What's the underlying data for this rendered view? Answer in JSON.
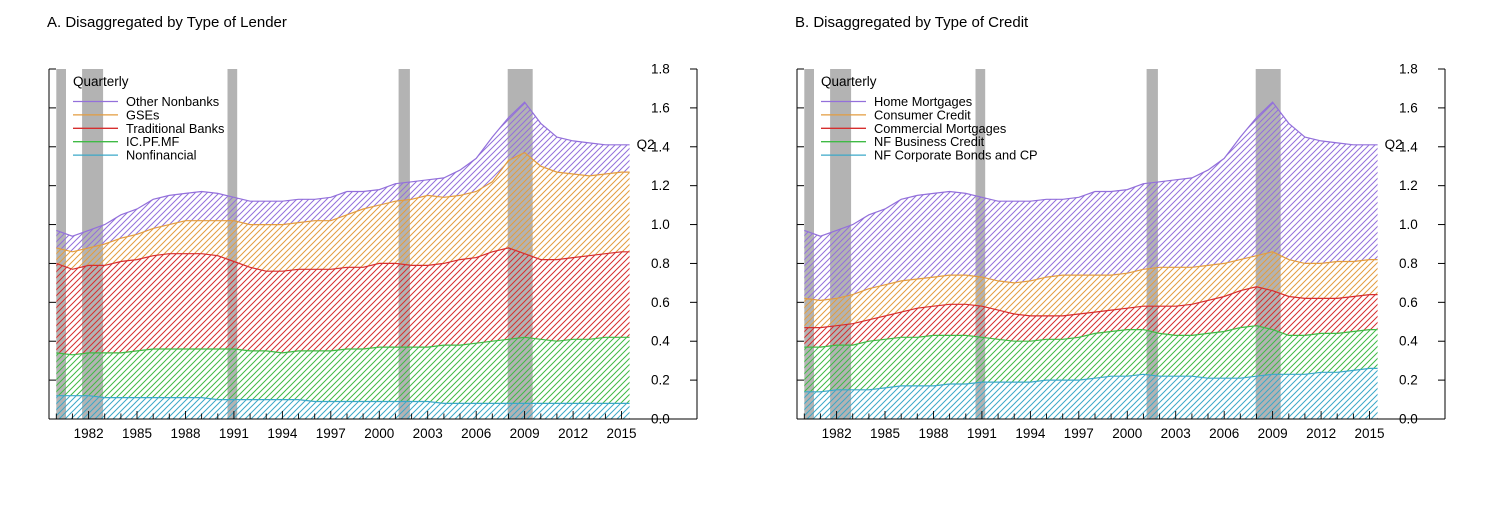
{
  "figure": {
    "background": "#ffffff",
    "panels": [
      {
        "title": "A. Disaggregated by Type of Lender",
        "frequency_label": "Quarterly",
        "end_label": "Q2"
      },
      {
        "title": "B. Disaggregated by Type of Credit",
        "frequency_label": "Quarterly",
        "end_label": "Q2"
      }
    ]
  },
  "chart_data": [
    {
      "type": "area",
      "stacked": true,
      "title": "A. Disaggregated by Type of Lender",
      "frequency_label": "Quarterly",
      "end_label": "Q2",
      "xlabel": "",
      "ylabel": "",
      "ylim": [
        0,
        1.8
      ],
      "ytick_step": 0.2,
      "ytick_labels": [
        "0.0",
        "0.2",
        "0.4",
        "0.6",
        "0.8",
        "1.0",
        "1.2",
        "1.4",
        "1.6",
        "1.8"
      ],
      "xtick_labels": [
        "1982",
        "1985",
        "1988",
        "1991",
        "1994",
        "1997",
        "2000",
        "2003",
        "2006",
        "2009",
        "2012",
        "2015"
      ],
      "legend_position": "top-left",
      "hatch": "diagonal",
      "band_color": "#b3b3b3",
      "recession_bands": [
        [
          1980.0,
          1980.6
        ],
        [
          1981.6,
          1982.9
        ],
        [
          1990.6,
          1991.2
        ],
        [
          2001.2,
          2001.9
        ],
        [
          2007.95,
          2009.5
        ]
      ],
      "series_order_note": "series listed top-to-bottom of stack",
      "x": [
        1980,
        1981,
        1982,
        1983,
        1984,
        1985,
        1986,
        1987,
        1988,
        1989,
        1990,
        1991,
        1992,
        1993,
        1994,
        1995,
        1996,
        1997,
        1998,
        1999,
        2000,
        2001,
        2002,
        2003,
        2004,
        2005,
        2006,
        2007,
        2008,
        2009,
        2010,
        2011,
        2012,
        2013,
        2014,
        2015,
        2015.5
      ],
      "series": [
        {
          "name": "Other Nonbanks",
          "color": "#9370DB",
          "values": [
            0.09,
            0.08,
            0.09,
            0.1,
            0.12,
            0.13,
            0.15,
            0.15,
            0.14,
            0.15,
            0.14,
            0.12,
            0.12,
            0.12,
            0.12,
            0.12,
            0.11,
            0.12,
            0.12,
            0.09,
            0.08,
            0.09,
            0.09,
            0.08,
            0.1,
            0.13,
            0.17,
            0.23,
            0.22,
            0.26,
            0.22,
            0.18,
            0.17,
            0.17,
            0.15,
            0.14,
            0.14
          ]
        },
        {
          "name": "GSEs",
          "color": "#E39C3F",
          "values": [
            0.08,
            0.09,
            0.09,
            0.11,
            0.12,
            0.13,
            0.14,
            0.15,
            0.17,
            0.17,
            0.18,
            0.21,
            0.22,
            0.24,
            0.24,
            0.24,
            0.25,
            0.25,
            0.27,
            0.3,
            0.3,
            0.32,
            0.34,
            0.36,
            0.34,
            0.33,
            0.34,
            0.36,
            0.45,
            0.52,
            0.48,
            0.45,
            0.43,
            0.41,
            0.41,
            0.41,
            0.41
          ]
        },
        {
          "name": "Traditional Banks",
          "color": "#D62E2E",
          "values": [
            0.46,
            0.44,
            0.45,
            0.45,
            0.47,
            0.47,
            0.48,
            0.49,
            0.49,
            0.49,
            0.48,
            0.45,
            0.43,
            0.41,
            0.42,
            0.42,
            0.42,
            0.42,
            0.42,
            0.42,
            0.43,
            0.43,
            0.42,
            0.42,
            0.42,
            0.44,
            0.44,
            0.46,
            0.47,
            0.43,
            0.41,
            0.42,
            0.42,
            0.43,
            0.43,
            0.44,
            0.44
          ]
        },
        {
          "name": "IC.PF.MF",
          "color": "#3FBA45",
          "values": [
            0.22,
            0.21,
            0.22,
            0.23,
            0.23,
            0.24,
            0.25,
            0.25,
            0.25,
            0.25,
            0.26,
            0.26,
            0.25,
            0.25,
            0.24,
            0.25,
            0.26,
            0.26,
            0.27,
            0.27,
            0.28,
            0.28,
            0.28,
            0.28,
            0.3,
            0.3,
            0.31,
            0.32,
            0.33,
            0.34,
            0.33,
            0.32,
            0.33,
            0.33,
            0.34,
            0.34,
            0.34
          ]
        },
        {
          "name": "Nonfinancial",
          "color": "#3BA8C8",
          "values": [
            0.12,
            0.12,
            0.12,
            0.11,
            0.11,
            0.11,
            0.11,
            0.11,
            0.11,
            0.11,
            0.1,
            0.1,
            0.1,
            0.1,
            0.1,
            0.1,
            0.09,
            0.09,
            0.09,
            0.09,
            0.09,
            0.09,
            0.09,
            0.09,
            0.08,
            0.08,
            0.08,
            0.08,
            0.08,
            0.08,
            0.08,
            0.08,
            0.08,
            0.08,
            0.08,
            0.08,
            0.08
          ]
        }
      ]
    },
    {
      "type": "area",
      "stacked": true,
      "title": "B. Disaggregated by Type of Credit",
      "frequency_label": "Quarterly",
      "end_label": "Q2",
      "xlabel": "",
      "ylabel": "",
      "ylim": [
        0,
        1.8
      ],
      "ytick_step": 0.2,
      "ytick_labels": [
        "0.0",
        "0.2",
        "0.4",
        "0.6",
        "0.8",
        "1.0",
        "1.2",
        "1.4",
        "1.6",
        "1.8"
      ],
      "xtick_labels": [
        "1982",
        "1985",
        "1988",
        "1991",
        "1994",
        "1997",
        "2000",
        "2003",
        "2006",
        "2009",
        "2012",
        "2015"
      ],
      "legend_position": "top-left",
      "hatch": "diagonal",
      "band_color": "#b3b3b3",
      "recession_bands": [
        [
          1980.0,
          1980.6
        ],
        [
          1981.6,
          1982.9
        ],
        [
          1990.6,
          1991.2
        ],
        [
          2001.2,
          2001.9
        ],
        [
          2007.95,
          2009.5
        ]
      ],
      "series_order_note": "series listed top-to-bottom of stack",
      "x": [
        1980,
        1981,
        1982,
        1983,
        1984,
        1985,
        1986,
        1987,
        1988,
        1989,
        1990,
        1991,
        1992,
        1993,
        1994,
        1995,
        1996,
        1997,
        1998,
        1999,
        2000,
        2001,
        2002,
        2003,
        2004,
        2005,
        2006,
        2007,
        2008,
        2009,
        2010,
        2011,
        2012,
        2013,
        2014,
        2015,
        2015.5
      ],
      "series": [
        {
          "name": "Home Mortgages",
          "color": "#9370DB",
          "values": [
            0.35,
            0.33,
            0.35,
            0.36,
            0.38,
            0.39,
            0.42,
            0.43,
            0.43,
            0.43,
            0.42,
            0.41,
            0.41,
            0.42,
            0.41,
            0.4,
            0.39,
            0.4,
            0.43,
            0.43,
            0.43,
            0.44,
            0.44,
            0.45,
            0.46,
            0.49,
            0.54,
            0.63,
            0.71,
            0.77,
            0.7,
            0.65,
            0.63,
            0.61,
            0.6,
            0.59,
            0.59
          ]
        },
        {
          "name": "Consumer Credit",
          "color": "#E39C3F",
          "values": [
            0.15,
            0.14,
            0.14,
            0.15,
            0.16,
            0.16,
            0.16,
            0.15,
            0.15,
            0.15,
            0.15,
            0.15,
            0.15,
            0.16,
            0.18,
            0.2,
            0.21,
            0.2,
            0.19,
            0.18,
            0.18,
            0.19,
            0.2,
            0.2,
            0.19,
            0.18,
            0.17,
            0.16,
            0.16,
            0.2,
            0.19,
            0.18,
            0.18,
            0.19,
            0.18,
            0.18,
            0.18
          ]
        },
        {
          "name": "Commercial Mortgages",
          "color": "#D62E2E",
          "values": [
            0.1,
            0.1,
            0.1,
            0.11,
            0.11,
            0.12,
            0.13,
            0.15,
            0.15,
            0.16,
            0.16,
            0.16,
            0.15,
            0.14,
            0.13,
            0.12,
            0.12,
            0.12,
            0.11,
            0.11,
            0.11,
            0.12,
            0.14,
            0.15,
            0.16,
            0.17,
            0.18,
            0.19,
            0.2,
            0.2,
            0.2,
            0.19,
            0.18,
            0.18,
            0.18,
            0.18,
            0.18
          ]
        },
        {
          "name": "NF Business Credit",
          "color": "#3FBA45",
          "values": [
            0.23,
            0.23,
            0.23,
            0.23,
            0.25,
            0.25,
            0.25,
            0.25,
            0.26,
            0.25,
            0.25,
            0.23,
            0.22,
            0.21,
            0.21,
            0.21,
            0.21,
            0.22,
            0.23,
            0.23,
            0.24,
            0.23,
            0.22,
            0.21,
            0.21,
            0.23,
            0.24,
            0.26,
            0.26,
            0.23,
            0.2,
            0.2,
            0.2,
            0.2,
            0.2,
            0.2,
            0.2
          ]
        },
        {
          "name": "NF Corporate Bonds and CP",
          "color": "#3BA8C8",
          "values": [
            0.14,
            0.14,
            0.15,
            0.15,
            0.15,
            0.16,
            0.17,
            0.17,
            0.17,
            0.18,
            0.18,
            0.19,
            0.19,
            0.19,
            0.19,
            0.2,
            0.2,
            0.2,
            0.21,
            0.22,
            0.22,
            0.23,
            0.22,
            0.22,
            0.22,
            0.21,
            0.21,
            0.21,
            0.22,
            0.23,
            0.23,
            0.23,
            0.24,
            0.24,
            0.25,
            0.26,
            0.26
          ]
        }
      ]
    }
  ]
}
